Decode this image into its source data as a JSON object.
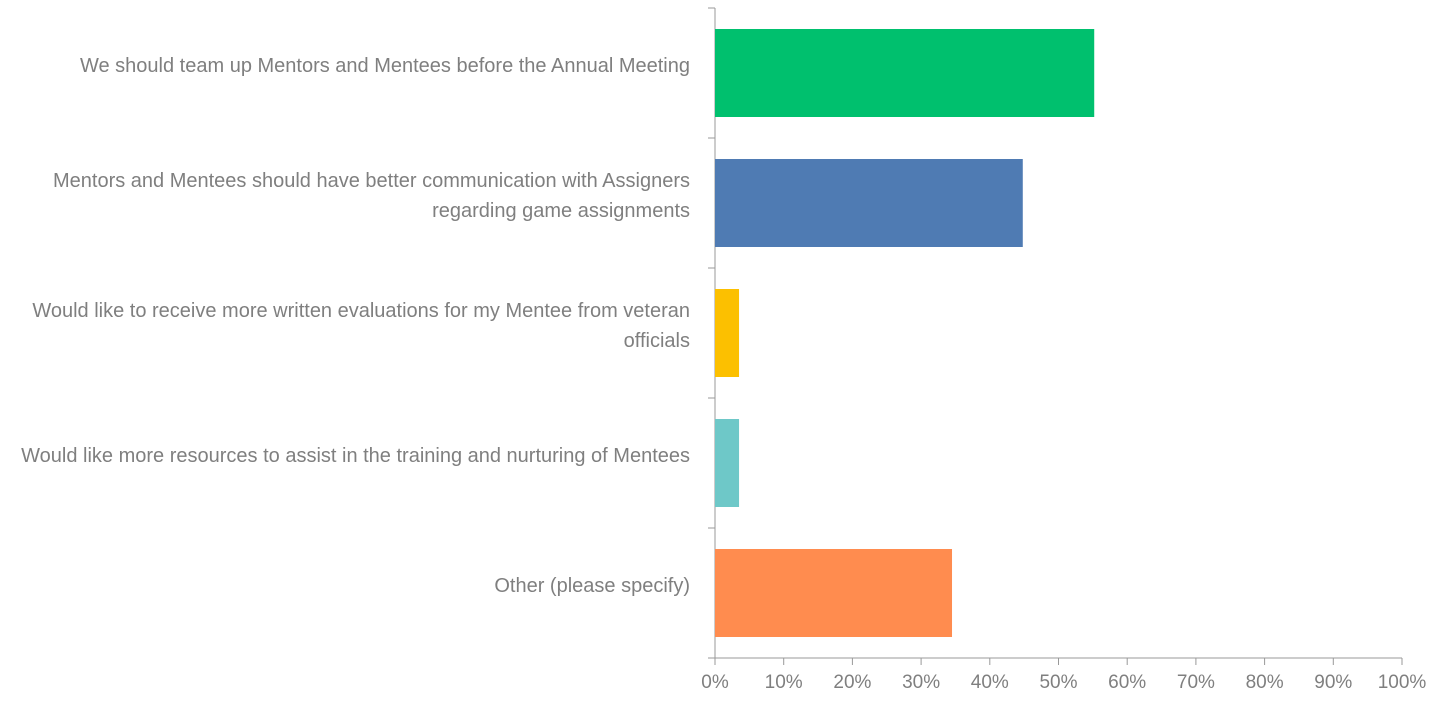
{
  "chart_data": {
    "type": "hbar",
    "categories": [
      "We should team up Mentors and Mentees before the Annual Meeting",
      "Mentors and Mentees should have better communication with Assigners regarding game assignments",
      "Would like to receive more written evaluations for my Mentee from veteran officials",
      "Would like more resources to assist in the training and nurturing of Mentees",
      "Other (please specify)"
    ],
    "values": [
      55.2,
      44.8,
      3.5,
      3.5,
      34.5
    ],
    "colors": [
      "#00c06e",
      "#4f7bb3",
      "#fcc000",
      "#6ec8c8",
      "#ff8c4f"
    ],
    "xlim": [
      0,
      100
    ],
    "xticks": [
      {
        "value": 0,
        "label": "0%"
      },
      {
        "value": 10,
        "label": "10%"
      },
      {
        "value": 20,
        "label": "20%"
      },
      {
        "value": 30,
        "label": "30%"
      },
      {
        "value": 40,
        "label": "40%"
      },
      {
        "value": 50,
        "label": "50%"
      },
      {
        "value": 60,
        "label": "60%"
      },
      {
        "value": 70,
        "label": "70%"
      },
      {
        "value": 80,
        "label": "80%"
      },
      {
        "value": 90,
        "label": "90%"
      },
      {
        "value": 100,
        "label": "100%"
      }
    ]
  }
}
